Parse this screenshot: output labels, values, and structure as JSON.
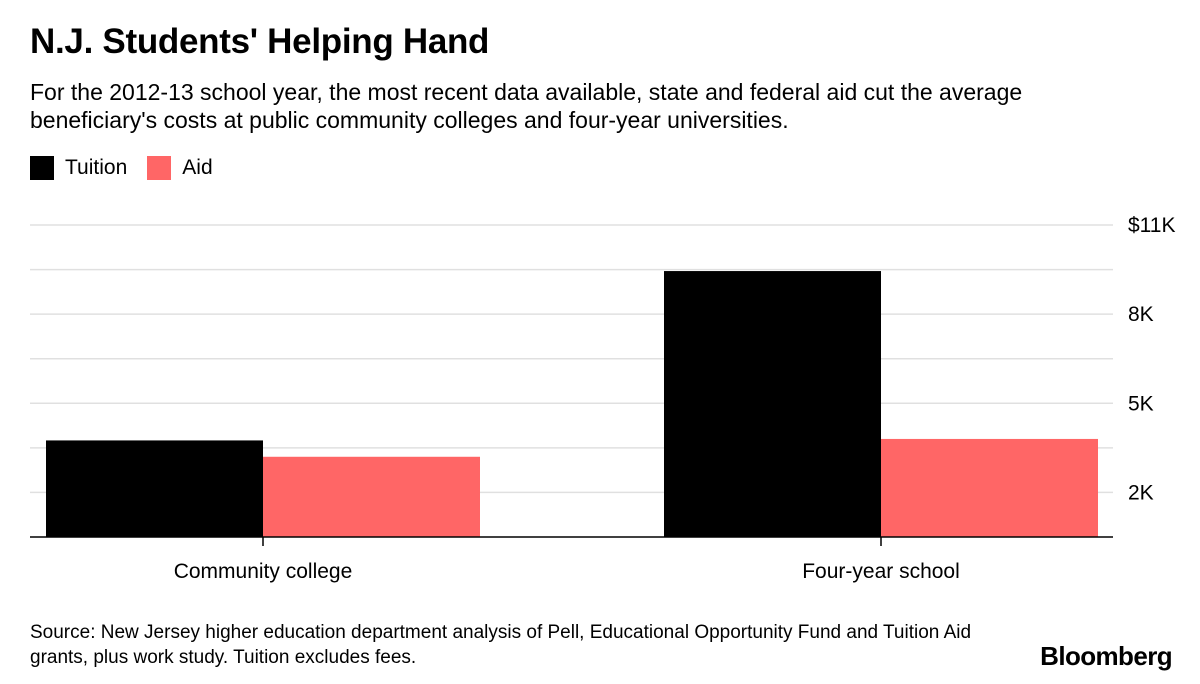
{
  "title": "N.J. Students' Helping Hand",
  "subtitle": "For the 2012-13 school year, the most recent data available, state and federal aid cut the average beneficiary's costs at public community colleges and four-year universities.",
  "legend": [
    {
      "label": "Tuition",
      "color": "#000000"
    },
    {
      "label": "Aid",
      "color": "#ff6666"
    }
  ],
  "source": "Source: New Jersey higher education department analysis of Pell, Educational Opportunity Fund and Tuition Aid grants, plus work study. Tuition excludes fees.",
  "brand": "Bloomberg",
  "chart_data": {
    "type": "bar",
    "title": "N.J. Students' Helping Hand",
    "categories": [
      "Community college",
      "Four-year school"
    ],
    "series": [
      {
        "name": "Tuition",
        "color": "#000000",
        "values": [
          3250,
          8950
        ]
      },
      {
        "name": "Aid",
        "color": "#ff6666",
        "values": [
          2700,
          3300
        ]
      }
    ],
    "ylim": [
      0,
      10500
    ],
    "gridlines": [
      1500,
      3000,
      4500,
      6000,
      7500,
      9000,
      10500
    ],
    "ticks": [
      {
        "value": 10500,
        "label": "$11K"
      },
      {
        "value": 7500,
        "label": "8K"
      },
      {
        "value": 4500,
        "label": "5K"
      },
      {
        "value": 1500,
        "label": "2K"
      }
    ],
    "xlabel": "",
    "ylabel": "",
    "grid": true,
    "legend_position": "top-left"
  }
}
